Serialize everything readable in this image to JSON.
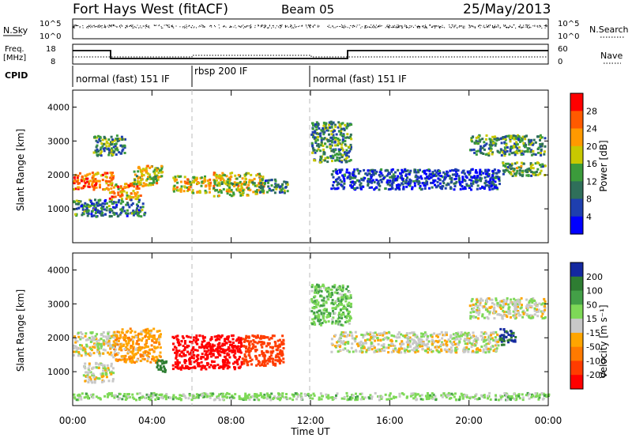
{
  "header": {
    "station": "Fort Hays West (fitACF)",
    "beam": "Beam 05",
    "date": "25/May/2013"
  },
  "top_panel": {
    "left_label": "N.Sky",
    "left_ticks": [
      "10^5",
      "10^0"
    ],
    "right_label": "N.Search",
    "right_ticks": [
      "10^5",
      "10^0"
    ]
  },
  "freq_panel": {
    "left_label_1": "Freq.",
    "left_label_2": "[MHz]",
    "left_ticks": [
      "18",
      "8"
    ],
    "right_label": "Nave",
    "right_ticks": [
      "60",
      "0"
    ]
  },
  "cpid_panel": {
    "label": "CPID",
    "segments": [
      "normal (fast) 151 IF",
      "rbsp 200 IF",
      "normal (fast) 151 IF"
    ]
  },
  "x_axis": {
    "label": "Time UT",
    "ticks": [
      "00:00",
      "04:00",
      "08:00",
      "12:00",
      "16:00",
      "20:00",
      "00:00"
    ]
  },
  "chart_data": [
    {
      "type": "heatmap",
      "title": "",
      "xlabel": "",
      "ylabel": "Slant Range [km]",
      "y_ticks": [
        "4000",
        "3000",
        "2000",
        "1000"
      ],
      "colorbar": {
        "label": "Power [dB]",
        "ticks": [
          "28",
          "24",
          "20",
          "16",
          "12",
          "8",
          "4"
        ],
        "colors": [
          "#ff0000",
          "#ff5a00",
          "#ff9900",
          "#c8c800",
          "#3b9b3b",
          "#2f6f5a",
          "#1e3faf",
          "#0000ff"
        ]
      },
      "blobs": [
        {
          "t0": 0.0,
          "t1": 2.0,
          "r0": 1600,
          "r1": 2100,
          "v": 24
        },
        {
          "t0": 1.8,
          "t1": 3.4,
          "r0": 1300,
          "r1": 1800,
          "v": 22
        },
        {
          "t0": 3.0,
          "t1": 4.5,
          "r0": 1700,
          "r1": 2300,
          "v": 18
        },
        {
          "t0": 0.0,
          "t1": 3.6,
          "r0": 800,
          "r1": 1300,
          "v": 10
        },
        {
          "t0": 1.0,
          "t1": 2.6,
          "r0": 2600,
          "r1": 3200,
          "v": 12
        },
        {
          "t0": 5.0,
          "t1": 6.9,
          "r0": 1500,
          "r1": 2000,
          "v": 20
        },
        {
          "t0": 7.0,
          "t1": 9.6,
          "r0": 1400,
          "r1": 2100,
          "v": 18
        },
        {
          "t0": 9.4,
          "t1": 10.8,
          "r0": 1500,
          "r1": 1900,
          "v": 10
        },
        {
          "t0": 12.0,
          "t1": 14.0,
          "r0": 2400,
          "r1": 3600,
          "v": 12
        },
        {
          "t0": 13.0,
          "t1": 21.5,
          "r0": 1600,
          "r1": 2200,
          "v": 6
        },
        {
          "t0": 20.0,
          "t1": 23.8,
          "r0": 2600,
          "r1": 3200,
          "v": 12
        },
        {
          "t0": 21.6,
          "t1": 23.8,
          "r0": 2000,
          "r1": 2400,
          "v": 14
        }
      ]
    },
    {
      "type": "heatmap",
      "title": "",
      "xlabel": "Time UT",
      "ylabel": "Slant Range [km]",
      "y_ticks": [
        "4000",
        "3000",
        "2000",
        "1000"
      ],
      "colorbar": {
        "label": "Velocity [m s⁻¹]",
        "ticks": [
          "200",
          "100",
          "50",
          "15",
          "-15",
          "-50",
          "-100",
          "-200"
        ],
        "colors": [
          "#1428a0",
          "#2e7d32",
          "#43a047",
          "#7ed957",
          "#c8c8c8",
          "#ffa500",
          "#ff7a00",
          "#ff3c00",
          "#ff0000"
        ]
      },
      "blobs": [
        {
          "t0": 0.0,
          "t1": 2.2,
          "r0": 1500,
          "r1": 2200,
          "v": 0
        },
        {
          "t0": 0.5,
          "t1": 2.0,
          "r0": 700,
          "r1": 1300,
          "v": 0
        },
        {
          "t0": 2.0,
          "t1": 4.4,
          "r0": 1300,
          "r1": 2300,
          "v": -40
        },
        {
          "t0": 4.2,
          "t1": 4.7,
          "r0": 1000,
          "r1": 1400,
          "v": 150
        },
        {
          "t0": 5.0,
          "t1": 8.5,
          "r0": 1100,
          "r1": 2100,
          "v": -230
        },
        {
          "t0": 8.5,
          "t1": 10.6,
          "r0": 1200,
          "r1": 2100,
          "v": -150
        },
        {
          "t0": 12.0,
          "t1": 14.0,
          "r0": 2400,
          "r1": 3600,
          "v": 40
        },
        {
          "t0": 13.0,
          "t1": 21.5,
          "r0": 1600,
          "r1": 2200,
          "v": 0
        },
        {
          "t0": 20.0,
          "t1": 23.8,
          "r0": 2600,
          "r1": 3200,
          "v": 0
        },
        {
          "t0": 21.5,
          "t1": 22.3,
          "r0": 1800,
          "r1": 2300,
          "v": 200
        },
        {
          "t0": 0.0,
          "t1": 24.0,
          "r0": 200,
          "r1": 400,
          "v": 30
        }
      ]
    }
  ]
}
